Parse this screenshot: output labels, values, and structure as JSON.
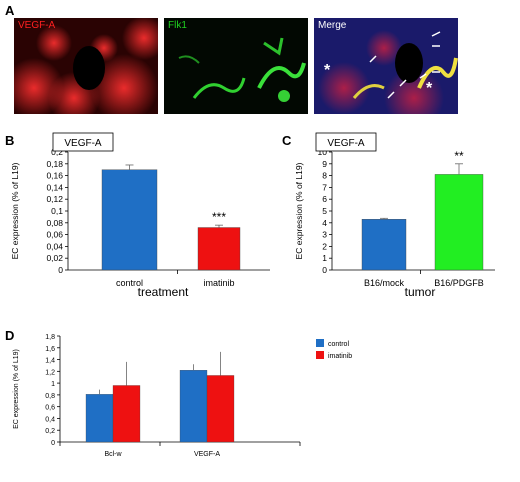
{
  "panel_letters": {
    "a": "A",
    "b": "B",
    "c": "C",
    "d": "D"
  },
  "micrographs": [
    {
      "label": "VEGF-A",
      "label_color": "#ff2020"
    },
    {
      "label": "Flk1",
      "label_color": "#20d020"
    },
    {
      "label": "Merge",
      "label_color": "#ffffff",
      "markers": [
        "*",
        "*"
      ]
    }
  ],
  "chart_data": [
    {
      "type": "bar",
      "title": "VEGF-A",
      "ylabel": "EC  expression (% of L19)",
      "xlabel": "treatment",
      "categories": [
        "control",
        "imatinib"
      ],
      "values": [
        0.17,
        0.072
      ],
      "errors": [
        0.008,
        0.004
      ],
      "colors": [
        "#1f6fc5",
        "#ee1111"
      ],
      "ylim": [
        0,
        0.2
      ],
      "yticks": [
        "0",
        "0,02",
        "0,04",
        "0,06",
        "0,08",
        "0,1",
        "0,12",
        "0,14",
        "0,16",
        "0,18",
        "0,2"
      ],
      "annotations": [
        "",
        "***"
      ]
    },
    {
      "type": "bar",
      "title": "VEGF-A",
      "ylabel": "EC  expression (% of L19)",
      "xlabel": "tumor",
      "categories": [
        "B16/mock",
        "B16/PDGFB"
      ],
      "values": [
        4.3,
        8.1
      ],
      "errors": [
        0.08,
        0.9
      ],
      "colors": [
        "#1f6fc5",
        "#22ee22"
      ],
      "ylim": [
        0,
        10
      ],
      "yticks": [
        "0",
        "1",
        "2",
        "3",
        "4",
        "5",
        "6",
        "7",
        "8",
        "9",
        "10"
      ],
      "annotations": [
        "",
        "**"
      ]
    },
    {
      "type": "bar",
      "ylabel": "EC  expression (% of L19)",
      "categories": [
        "Bcl-w",
        "VEGF-A"
      ],
      "series": [
        {
          "name": "control",
          "color": "#1f6fc5",
          "values": [
            0.81,
            1.22
          ],
          "errors": [
            0.08,
            0.1
          ]
        },
        {
          "name": "imatinib",
          "color": "#ee1111",
          "values": [
            0.96,
            1.13
          ],
          "errors": [
            0.4,
            0.4
          ]
        }
      ],
      "ylim": [
        0,
        1.8
      ],
      "yticks": [
        "0",
        "0,2",
        "0,4",
        "0,6",
        "0,8",
        "1",
        "1,2",
        "1,4",
        "1,6",
        "1,8"
      ],
      "legend": "top-right"
    }
  ]
}
